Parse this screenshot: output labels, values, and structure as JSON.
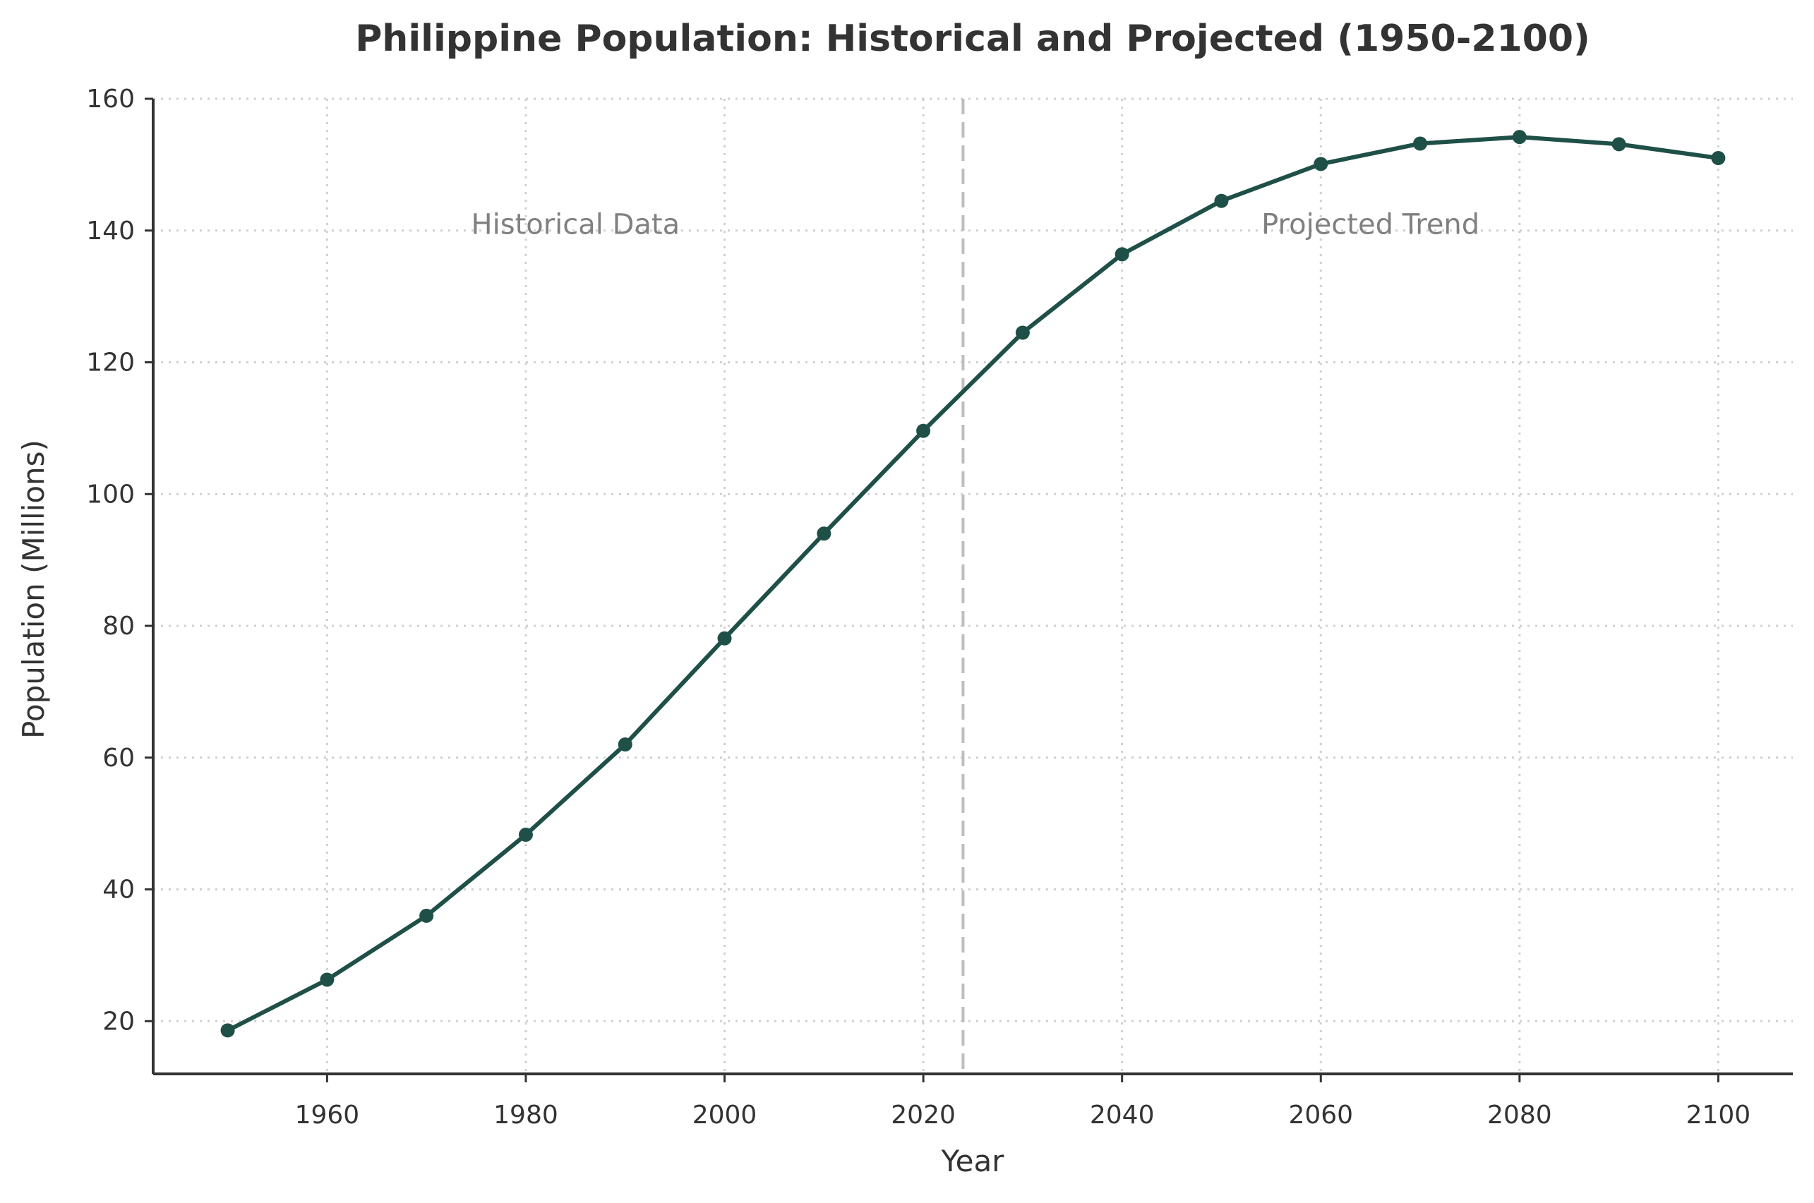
{
  "chart_data": {
    "type": "line",
    "title": "Philippine Population: Historical and Projected (1950-2100)",
    "xlabel": "Year",
    "ylabel": "Population (Millions)",
    "xlim": [
      1942.5,
      2107.5
    ],
    "ylim": [
      12,
      160
    ],
    "x_ticks": [
      1960,
      1980,
      2000,
      2020,
      2040,
      2060,
      2080,
      2100
    ],
    "y_ticks": [
      20,
      40,
      60,
      80,
      100,
      120,
      140,
      160
    ],
    "grid": true,
    "line_color": "#1f5048",
    "divider_year": 2024,
    "annotations": [
      {
        "text": "Historical Data",
        "x": 1985,
        "y": 141
      },
      {
        "text": "Projected Trend",
        "x": 2065,
        "y": 141
      }
    ],
    "series": [
      {
        "x": [
          1950,
          1960,
          1970,
          1980,
          1990,
          2000,
          2010,
          2020,
          2030,
          2040,
          2050,
          2060,
          2070,
          2080,
          2090,
          2100
        ],
        "values": [
          18.6,
          26.3,
          36.0,
          48.3,
          62.0,
          78.1,
          94.0,
          109.6,
          124.5,
          136.4,
          144.5,
          150.1,
          153.2,
          154.2,
          153.1,
          151.0
        ]
      }
    ]
  }
}
